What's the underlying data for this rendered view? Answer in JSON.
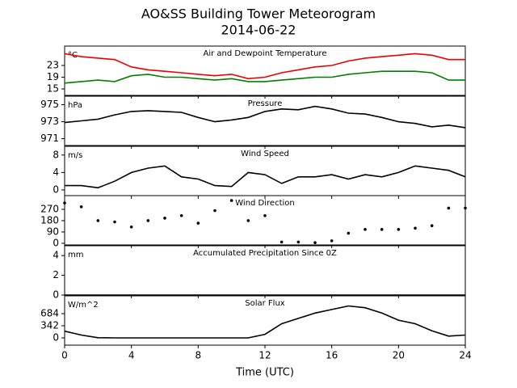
{
  "title": "AO&SS Building Tower Meteorogram",
  "subtitle": "2014-06-22",
  "xlabel": "Time (UTC)",
  "chart_data": [
    {
      "type": "line",
      "title": "Air and Dewpoint Temperature",
      "unit": "°C",
      "x": [
        0,
        1,
        2,
        3,
        4,
        5,
        6,
        7,
        8,
        9,
        10,
        11,
        12,
        13,
        14,
        15,
        16,
        17,
        18,
        19,
        20,
        21,
        22,
        23,
        24
      ],
      "series": [
        {
          "name": "Air Temperature",
          "color": "#ee0000",
          "values": [
            27,
            26,
            25.5,
            25,
            22.5,
            21.5,
            21,
            20.5,
            20,
            19.5,
            20,
            18.5,
            19,
            20.5,
            21.5,
            22.5,
            23,
            24.5,
            25.5,
            26,
            26.5,
            27,
            26.5,
            25,
            25
          ]
        },
        {
          "name": "Dewpoint Temperature",
          "color": "#008000",
          "values": [
            17,
            17.5,
            18,
            17.5,
            19.5,
            20,
            19,
            19,
            18.5,
            18,
            18.5,
            17.5,
            17.5,
            18,
            18.5,
            19,
            19,
            20,
            20.5,
            21,
            21,
            21,
            20.5,
            18,
            18
          ]
        }
      ],
      "xlim": [
        0,
        24
      ],
      "ylim": [
        12.8,
        29.6
      ],
      "yticks": [
        15,
        19,
        23
      ]
    },
    {
      "type": "line",
      "title": "Pressure",
      "unit": "hPa",
      "x": [
        0,
        1,
        2,
        3,
        4,
        5,
        6,
        7,
        8,
        9,
        10,
        11,
        12,
        13,
        14,
        15,
        16,
        17,
        18,
        19,
        20,
        21,
        22,
        23,
        24
      ],
      "series": [
        {
          "name": "Pressure",
          "color": "#000000",
          "values": [
            972.9,
            973.1,
            973.3,
            973.8,
            974.2,
            974.3,
            974.2,
            974.1,
            973.5,
            973.0,
            973.2,
            973.5,
            974.2,
            974.5,
            974.4,
            974.8,
            974.5,
            974.0,
            973.9,
            973.5,
            973.0,
            972.8,
            972.4,
            972.6,
            972.3
          ]
        }
      ],
      "xlim": [
        0,
        24
      ],
      "ylim": [
        970.2,
        976.0
      ],
      "yticks": [
        971,
        973,
        975
      ]
    },
    {
      "type": "line",
      "title": "Wind Speed",
      "unit": "m/s",
      "x": [
        0,
        1,
        2,
        3,
        4,
        5,
        6,
        7,
        8,
        9,
        10,
        11,
        12,
        13,
        14,
        15,
        16,
        17,
        18,
        19,
        20,
        21,
        22,
        23,
        24
      ],
      "series": [
        {
          "name": "Wind Speed",
          "color": "#000000",
          "values": [
            1,
            1,
            0.5,
            2,
            4,
            5,
            5.5,
            3,
            2.5,
            1,
            0.8,
            4,
            3.5,
            1.5,
            3,
            3,
            3.5,
            2.5,
            3.5,
            3,
            4,
            5.5,
            5,
            4.5,
            3
          ]
        }
      ],
      "xlim": [
        0,
        24
      ],
      "ylim": [
        -1.3,
        10
      ],
      "yticks": [
        0,
        4,
        8
      ]
    },
    {
      "type": "scatter",
      "title": "Wind Direction",
      "x": [
        0,
        1,
        2,
        3,
        4,
        5,
        6,
        7,
        8,
        9,
        10,
        11,
        12,
        13,
        14,
        15,
        16,
        17,
        18,
        19,
        20,
        21,
        22,
        23,
        24
      ],
      "series": [
        {
          "name": "Wind Direction",
          "color": "#000000",
          "values": [
            320,
            290,
            180,
            170,
            130,
            180,
            200,
            220,
            160,
            260,
            340,
            180,
            220,
            10,
            10,
            5,
            20,
            80,
            110,
            110,
            110,
            120,
            140,
            280,
            280
          ]
        }
      ],
      "xlim": [
        0,
        24
      ],
      "ylim": [
        -13,
        379
      ],
      "yticks": [
        0,
        90,
        180,
        270
      ]
    },
    {
      "type": "line",
      "title": "Accumulated Precipitation Since 0Z",
      "unit": "mm",
      "x": [
        0,
        1,
        2,
        3,
        4,
        5,
        6,
        7,
        8,
        9,
        10,
        11,
        12,
        13,
        14,
        15,
        16,
        17,
        18,
        19,
        20,
        21,
        22,
        23,
        24
      ],
      "series": [
        {
          "name": "Precipitation",
          "color": "#000000",
          "values": [
            0,
            0,
            0,
            0,
            0,
            0,
            0,
            0,
            0,
            0,
            0,
            0,
            0,
            0,
            0,
            0,
            0,
            0,
            0,
            0,
            0,
            0,
            0,
            0,
            0
          ]
        }
      ],
      "xlim": [
        0,
        24
      ],
      "ylim": [
        0,
        5
      ],
      "yticks": [
        0,
        2,
        4
      ]
    },
    {
      "type": "line",
      "title": "Solar Flux",
      "unit": "W/m^2",
      "x": [
        0,
        1,
        2,
        3,
        4,
        5,
        6,
        7,
        8,
        9,
        10,
        11,
        12,
        13,
        14,
        15,
        16,
        17,
        18,
        19,
        20,
        21,
        22,
        23,
        24
      ],
      "series": [
        {
          "name": "Solar Flux",
          "color": "#000000",
          "values": [
            190,
            80,
            5,
            0,
            0,
            0,
            0,
            0,
            0,
            0,
            0,
            0,
            100,
            400,
            550,
            700,
            800,
            900,
            850,
            700,
            500,
            400,
            200,
            50,
            80
          ]
        }
      ],
      "xlim": [
        0,
        24
      ],
      "ylim": [
        -205,
        1186
      ],
      "yticks": [
        0,
        342,
        684
      ],
      "xticks": [
        0,
        4,
        8,
        12,
        16,
        20,
        24
      ]
    }
  ]
}
